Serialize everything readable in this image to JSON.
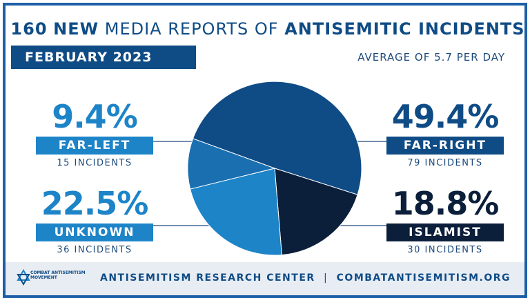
{
  "header": {
    "title_num": "160",
    "title_bold1": "NEW",
    "title_mid": "MEDIA REPORTS OF",
    "title_bold2": "ANTISEMITIC INCIDENTS",
    "date": "FEBRUARY 2023",
    "average": "AVERAGE OF 5.7 PER DAY"
  },
  "chart_data": {
    "type": "pie",
    "title": "160 NEW MEDIA REPORTS OF ANTISEMITIC INCIDENTS",
    "slices": [
      {
        "label": "FAR-RIGHT",
        "percent": 49.4,
        "percent_label": "49.4%",
        "count": 79,
        "count_label": "79 INCIDENTS",
        "color": "#0f4c86"
      },
      {
        "label": "ISLAMIST",
        "percent": 18.8,
        "percent_label": "18.8%",
        "count": 30,
        "count_label": "30 INCIDENTS",
        "color": "#0b1e3a"
      },
      {
        "label": "UNKNOWN",
        "percent": 22.5,
        "percent_label": "22.5%",
        "count": 36,
        "count_label": "36 INCIDENTS",
        "color": "#1d84c8"
      },
      {
        "label": "FAR-LEFT",
        "percent": 9.4,
        "percent_label": "9.4%",
        "count": 15,
        "count_label": "15 INCIDENTS",
        "color": "#1a6fb0"
      }
    ]
  },
  "footer": {
    "logo_text": "COMBAT ANTISEMITISM MOVEMENT",
    "center": "ANTISEMITISM RESEARCH CENTER",
    "separator": "|",
    "site": "COMBATANTISEMITISM.ORG"
  },
  "colors": {
    "brand_blue": "#0f4c86",
    "light_blue": "#1d84c8",
    "navy": "#0b1e3a",
    "footer_bg": "#e8edf3"
  }
}
